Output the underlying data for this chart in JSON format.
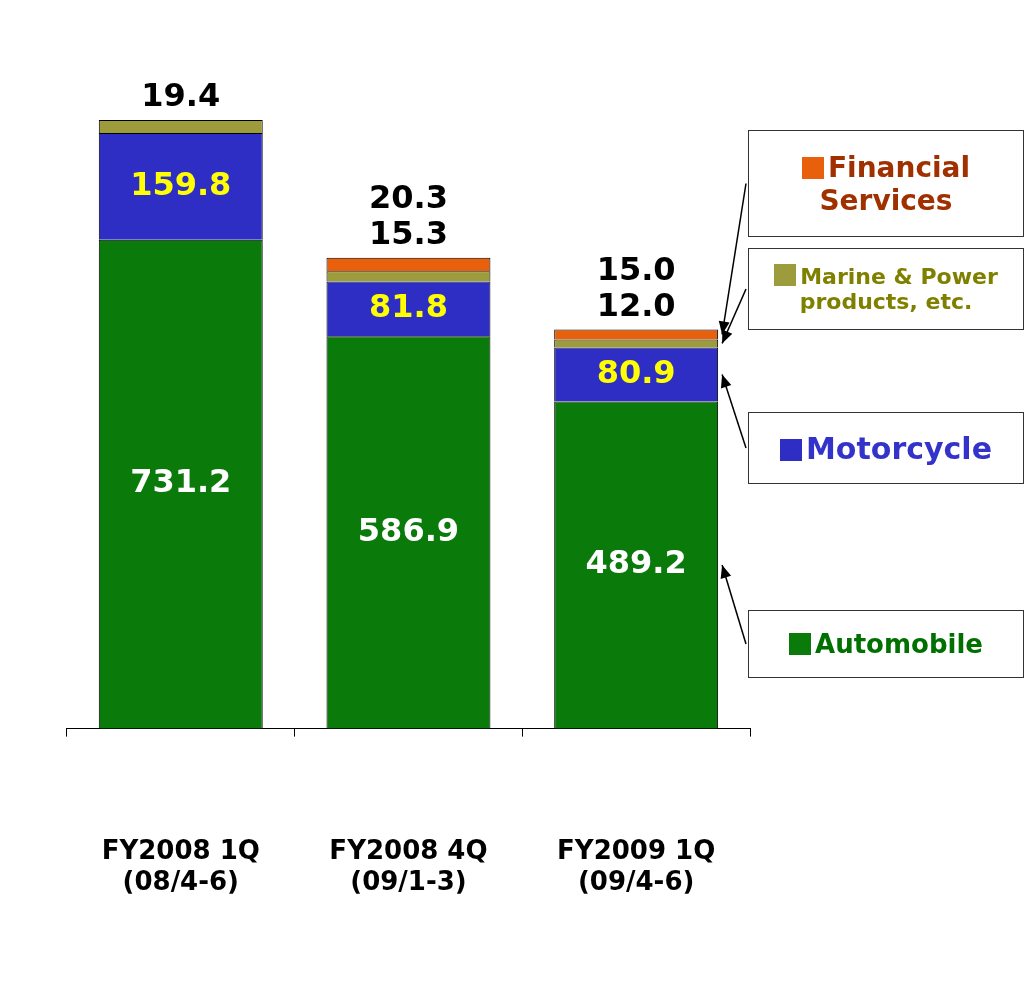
{
  "chart_data": {
    "type": "bar",
    "stacked": true,
    "data_labels": true,
    "legend": "right",
    "grid": false,
    "categories": [
      "FY2008 1Q\n(08/4-6)",
      "FY2008 4Q\n(09/1-3)",
      "FY2009 1Q\n(09/4-6)"
    ],
    "series": [
      {
        "name": "Automobile",
        "color": "#0a7a0a",
        "values": [
          731.2,
          586.9,
          489.2
        ]
      },
      {
        "name": "Motorcycle",
        "color": "#2e2ec4",
        "values": [
          159.8,
          81.8,
          80.9
        ]
      },
      {
        "name": "Marine & Power products, etc.",
        "color": "#9c9c3c",
        "values": [
          19.4,
          15.3,
          12.0
        ],
        "value_labels": [
          "19.4",
          "15.3",
          "12.0"
        ]
      },
      {
        "name": "Financial Services",
        "color": "#e8600c",
        "values": [
          null,
          20.3,
          15.0
        ],
        "value_labels": [
          null,
          "20.3",
          "15.0"
        ]
      }
    ]
  }
}
